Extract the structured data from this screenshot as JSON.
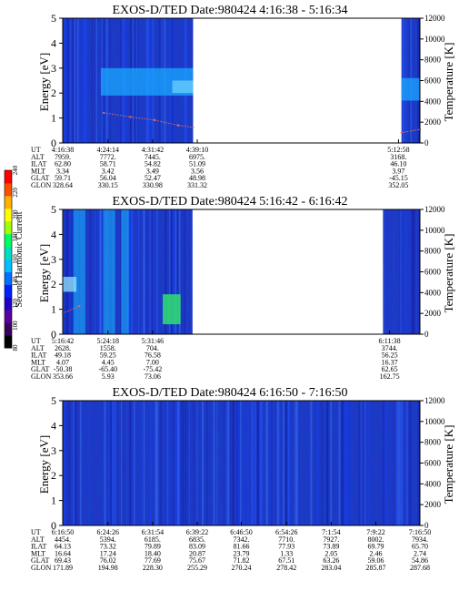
{
  "chart_data": [
    {
      "type": "heatmap",
      "title": "EXOS-D/TED   Date:980424  4:16:38 - 5:16:34",
      "ylabel": "Energy [eV]",
      "y2label": "Temperature [K]",
      "ylim": [
        0,
        5
      ],
      "y2lim": [
        0,
        12000
      ],
      "yticks": [
        "0",
        "1",
        "2",
        "3",
        "4",
        "5"
      ],
      "y2ticks": [
        "0",
        "2000",
        "4000",
        "6000",
        "8000",
        "10000",
        "12000"
      ],
      "xlim_minutes": [
        256.6,
        316.6
      ],
      "data_segments_minutes": [
        [
          256.6,
          278.5
        ],
        [
          313.5,
          316.6
        ]
      ],
      "band": {
        "energy_low": 1.9,
        "energy_high": 3.0,
        "start_min": 263.0
      },
      "temperature_trace": {
        "x_min": [
          263.5,
          268,
          272,
          276,
          278.5,
          313.5,
          316.6
        ],
        "kelvin": [
          2900,
          2500,
          2200,
          1700,
          1500,
          1000,
          1300
        ]
      },
      "footer_rows": [
        {
          "label": "UT",
          "values": [
            "4:16:38",
            "4:24:14",
            "4:31:42",
            "4:39:10",
            "5:12:58"
          ]
        },
        {
          "label": "ALT",
          "values": [
            "7959.",
            "7772.",
            "7445.",
            "6975.",
            "3168."
          ]
        },
        {
          "label": "ILAT",
          "values": [
            "62.80",
            "58.71",
            "54.82",
            "51.09",
            "46.10"
          ]
        },
        {
          "label": "MLT",
          "values": [
            "3.34",
            "3.42",
            "3.49",
            "3.56",
            "3.97"
          ]
        },
        {
          "label": "GLAT",
          "values": [
            "59.71",
            "56.04",
            "52.47",
            "48.98",
            "-45.15"
          ]
        },
        {
          "label": "GLON",
          "values": [
            "328.64",
            "330.15",
            "330.98",
            "331.32",
            "352.05"
          ]
        }
      ],
      "footer_minutes": [
        256.6,
        264.2,
        271.7,
        279.2,
        313.0
      ]
    },
    {
      "type": "heatmap",
      "title": "EXOS-D/TED   Date:980424  5:16:42 - 6:16:42",
      "ylabel": "Energy [eV]",
      "y2label": "Temperature [K]",
      "ylim": [
        0,
        5
      ],
      "y2lim": [
        0,
        12000
      ],
      "yticks": [
        "0",
        "1",
        "2",
        "3",
        "4",
        "5"
      ],
      "y2ticks": [
        "0",
        "2000",
        "4000",
        "6000",
        "8000",
        "10000",
        "12000"
      ],
      "xlim_minutes": [
        316.7,
        376.7
      ],
      "data_segments_minutes": [
        [
          316.7,
          338.5
        ],
        [
          370.5,
          376.7
        ]
      ],
      "green_patch": {
        "x_min": [
          333.5,
          336.5
        ],
        "energy": [
          0.4,
          1.6
        ]
      },
      "temperature_trace": {
        "x_min": [
          316.7,
          319.5
        ],
        "kelvin": [
          2000,
          2700
        ]
      },
      "footer_rows": [
        {
          "label": "UT",
          "values": [
            "5:16:42",
            "5:24:18",
            "5:31:46",
            "6:11:38"
          ]
        },
        {
          "label": "ALT",
          "values": [
            "2628.",
            "1558.",
            "704.",
            "3744."
          ]
        },
        {
          "label": "ILAT",
          "values": [
            "49.18",
            "59.25",
            "76.58",
            "56.25"
          ]
        },
        {
          "label": "MLT",
          "values": [
            "4.07",
            "4.45",
            "7.00",
            "16.37"
          ]
        },
        {
          "label": "GLAT",
          "values": [
            "-50.38",
            "-65.40",
            "-75.42",
            "62.65"
          ]
        },
        {
          "label": "GLON",
          "values": [
            "353.66",
            "5.93",
            "73.06",
            "162.75"
          ]
        }
      ],
      "footer_minutes": [
        316.7,
        324.3,
        331.8,
        371.6
      ]
    },
    {
      "type": "heatmap",
      "title": "EXOS-D/TED   Date:980424  6:16:50 - 7:16:50",
      "ylabel": "Energy [eV]",
      "y2label": "Temperature [K]",
      "ylim": [
        0,
        5
      ],
      "y2lim": [
        0,
        12000
      ],
      "yticks": [
        "0",
        "1",
        "2",
        "3",
        "4",
        "5"
      ],
      "y2ticks": [
        "0",
        "2000",
        "4000",
        "6000",
        "8000",
        "10000",
        "12000"
      ],
      "xlim_minutes": [
        376.8,
        436.8
      ],
      "data_segments_minutes": [
        [
          376.8,
          436.8
        ]
      ],
      "footer_rows": [
        {
          "label": "UT",
          "values": [
            "6:16:50",
            "6:24:26",
            "6:31:54",
            "6:39:22",
            "6:46:50",
            "6:54:26",
            "7:1:54",
            "7:9:22",
            "7:16:50"
          ]
        },
        {
          "label": "ALT",
          "values": [
            "4454.",
            "5394.",
            "6185.",
            "6835.",
            "7342.",
            "7710.",
            "7927.",
            "8002.",
            "7934."
          ]
        },
        {
          "label": "ILAT",
          "values": [
            "64.13",
            "73.32",
            "79.89",
            "83.09",
            "81.66",
            "77.93",
            "73.89",
            "69.79",
            "65.70"
          ]
        },
        {
          "label": "MLT",
          "values": [
            "16.64",
            "17.24",
            "18.40",
            "20.87",
            "23.79",
            "1.33",
            "2.05",
            "2.46",
            "2.74"
          ]
        },
        {
          "label": "GLAT",
          "values": [
            "69.43",
            "76.02",
            "77.69",
            "75.67",
            "71.82",
            "67.51",
            "63.26",
            "59.06",
            "54.86"
          ]
        },
        {
          "label": "GLON",
          "values": [
            "171.89",
            "194.98",
            "228.30",
            "255.29",
            "270.24",
            "278.42",
            "283.04",
            "285.87",
            "287.68"
          ]
        }
      ],
      "footer_minutes": [
        376.8,
        384.4,
        391.9,
        399.4,
        406.8,
        414.4,
        421.9,
        429.4,
        436.8
      ]
    }
  ],
  "colorbar": {
    "label": "Second Harmonic Current",
    "ticks": [
      "80",
      "100",
      "120",
      "140",
      "160",
      "180",
      "200",
      "220",
      "240"
    ],
    "range": [
      80,
      240
    ],
    "colors": [
      "#000000",
      "#3a0060",
      "#5a00a0",
      "#2000c8",
      "#0020ff",
      "#0070ff",
      "#00c0ff",
      "#00e0c0",
      "#00ff60",
      "#a0ff00",
      "#ffff00",
      "#ffb000",
      "#ff5000",
      "#ff0000"
    ]
  },
  "style": {
    "background_blue": "#2036c8",
    "band_color": "#1aa8ff",
    "trace_color": "#e07060",
    "green_color": "#30e070"
  }
}
